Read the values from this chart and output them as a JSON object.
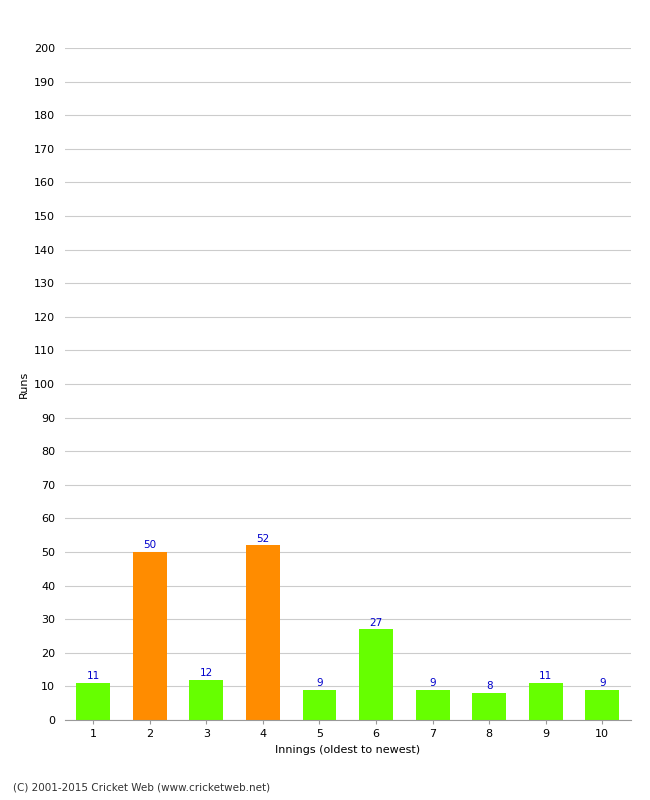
{
  "xlabel": "Innings (oldest to newest)",
  "ylabel": "Runs",
  "categories": [
    "1",
    "2",
    "3",
    "4",
    "5",
    "6",
    "7",
    "8",
    "9",
    "10"
  ],
  "values": [
    11,
    50,
    12,
    52,
    9,
    27,
    9,
    8,
    11,
    9
  ],
  "bar_colors": [
    "#66ff00",
    "#ff8c00",
    "#66ff00",
    "#ff8c00",
    "#66ff00",
    "#66ff00",
    "#66ff00",
    "#66ff00",
    "#66ff00",
    "#66ff00"
  ],
  "label_color": "#0000cc",
  "ylim": [
    0,
    200
  ],
  "yticks": [
    0,
    10,
    20,
    30,
    40,
    50,
    60,
    70,
    80,
    90,
    100,
    110,
    120,
    130,
    140,
    150,
    160,
    170,
    180,
    190,
    200
  ],
  "background_color": "#ffffff",
  "grid_color": "#cccccc",
  "footer": "(C) 2001-2015 Cricket Web (www.cricketweb.net)",
  "label_fontsize": 7.5,
  "axis_label_fontsize": 8,
  "tick_fontsize": 8,
  "footer_fontsize": 7.5,
  "bar_width": 0.6
}
